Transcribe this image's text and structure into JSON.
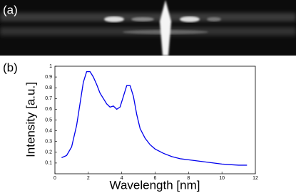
{
  "panels": {
    "a": "(a)",
    "b": "(b)"
  },
  "chart_data": {
    "type": "line",
    "xlabel": "Wavelength [nm]",
    "ylabel": "Intensity [a.u.]",
    "xlim": [
      0,
      12
    ],
    "ylim": [
      0,
      1
    ],
    "xticks": [
      0,
      2,
      4,
      6,
      8,
      10,
      12
    ],
    "yticks": [
      0.1,
      0.2,
      0.3,
      0.4,
      0.5,
      0.6,
      0.7,
      0.8,
      0.9,
      1
    ],
    "x": [
      0.4,
      0.7,
      1.0,
      1.3,
      1.5,
      1.7,
      1.9,
      2.1,
      2.3,
      2.5,
      2.7,
      2.9,
      3.1,
      3.3,
      3.5,
      3.7,
      3.9,
      4.1,
      4.3,
      4.5,
      4.7,
      4.9,
      5.1,
      5.4,
      5.7,
      6.0,
      6.5,
      7.0,
      7.5,
      8.0,
      8.5,
      9.0,
      9.5,
      10.0,
      10.5,
      11.0,
      11.5
    ],
    "series": [
      {
        "color": "#0000ee",
        "values": [
          0.15,
          0.17,
          0.25,
          0.45,
          0.65,
          0.85,
          0.95,
          0.95,
          0.9,
          0.83,
          0.75,
          0.7,
          0.65,
          0.62,
          0.63,
          0.6,
          0.62,
          0.72,
          0.82,
          0.82,
          0.72,
          0.55,
          0.42,
          0.33,
          0.27,
          0.23,
          0.19,
          0.16,
          0.14,
          0.13,
          0.12,
          0.11,
          0.1,
          0.09,
          0.085,
          0.08,
          0.08
        ]
      }
    ]
  }
}
